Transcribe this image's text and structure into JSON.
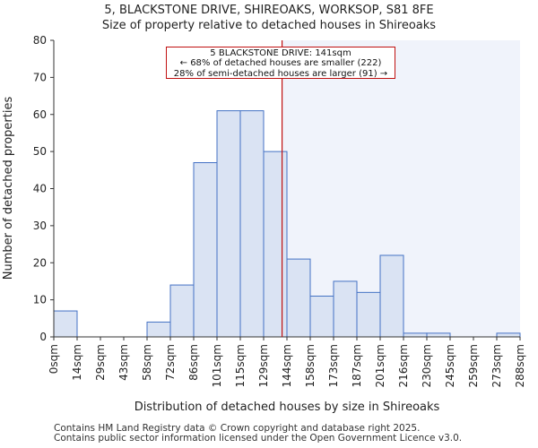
{
  "title_line1": "5, BLACKSTONE DRIVE, SHIREOAKS, WORKSOP, S81 8FE",
  "title_line2": "Size of property relative to detached houses in Shireoaks",
  "annotation": {
    "line1": "5 BLACKSTONE DRIVE: 141sqm",
    "line2": "← 68% of detached houses are smaller (222)",
    "line3": "28% of semi-detached houses are larger (91) →"
  },
  "footer": {
    "line1": "Contains HM Land Registry data © Crown copyright and database right 2025.",
    "line2": "Contains public sector information licensed under the Open Government Licence v3.0."
  },
  "colors": {
    "bar_fill": "#dae3f3",
    "bar_stroke": "#4472c4",
    "marker_line": "#c01010",
    "highlight_region": "#f0f3fb"
  },
  "chart_data": {
    "type": "bar",
    "xlabel": "Distribution of detached houses by size in Shireoaks",
    "ylabel": "Number of detached properties",
    "ylim": [
      0,
      80
    ],
    "yticks": [
      0,
      10,
      20,
      30,
      40,
      50,
      60,
      70,
      80
    ],
    "bin_edges": [
      0,
      14,
      29,
      43,
      58,
      72,
      86,
      101,
      115,
      129,
      144,
      158,
      173,
      187,
      201,
      216,
      230,
      245,
      259,
      273,
      288
    ],
    "tick_labels": [
      "0sqm",
      "14sqm",
      "29sqm",
      "43sqm",
      "58sqm",
      "72sqm",
      "86sqm",
      "101sqm",
      "115sqm",
      "129sqm",
      "144sqm",
      "158sqm",
      "173sqm",
      "187sqm",
      "201sqm",
      "216sqm",
      "230sqm",
      "245sqm",
      "259sqm",
      "273sqm",
      "288sqm"
    ],
    "values": [
      7,
      0,
      0,
      0,
      4,
      14,
      47,
      61,
      61,
      50,
      21,
      11,
      15,
      12,
      22,
      1,
      1,
      0,
      0,
      1
    ],
    "marker_value": 141,
    "grid": false
  }
}
